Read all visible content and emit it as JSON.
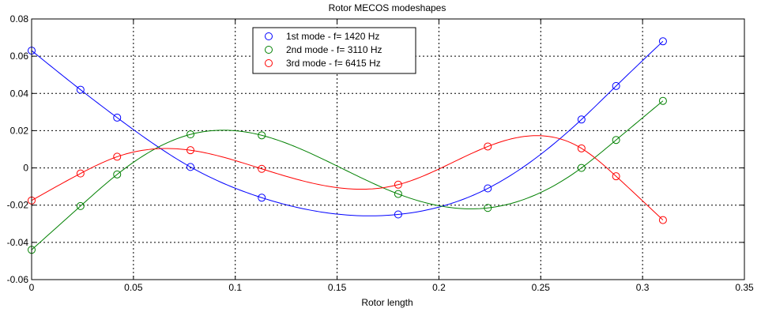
{
  "chart_data": {
    "type": "line",
    "title": "Rotor MECOS modeshapes",
    "xlabel": "Rotor length",
    "ylabel": "",
    "xlim": [
      0,
      0.35
    ],
    "ylim": [
      -0.06,
      0.08
    ],
    "xticks": [
      0,
      0.05,
      0.1,
      0.15,
      0.2,
      0.25,
      0.3,
      0.35
    ],
    "xtick_labels": [
      "0",
      "0.05",
      "0.1",
      "0.15",
      "0.2",
      "0.25",
      "0.3",
      "0.35"
    ],
    "yticks": [
      -0.06,
      -0.04,
      -0.02,
      0,
      0.02,
      0.04,
      0.06,
      0.08
    ],
    "ytick_labels": [
      "-0.06",
      "-0.04",
      "-0.02",
      "0",
      "0.02",
      "0.04",
      "0.06",
      "0.08"
    ],
    "grid": true,
    "legend_position": "top-center",
    "x": [
      0,
      0.024,
      0.042,
      0.078,
      0.113,
      0.18,
      0.224,
      0.27,
      0.287,
      0.31
    ],
    "series": [
      {
        "name": "1st mode - f= 1420 Hz",
        "color": "#0000ff",
        "values": [
          0.063,
          0.042,
          0.027,
          0.0005,
          -0.016,
          -0.025,
          -0.011,
          0.026,
          0.044,
          0.068
        ]
      },
      {
        "name": "2nd mode - f= 3110 Hz",
        "color": "#008000",
        "values": [
          -0.044,
          -0.0205,
          -0.0035,
          0.018,
          0.0175,
          -0.014,
          -0.0215,
          0.0,
          0.015,
          0.036
        ]
      },
      {
        "name": "3rd mode - f= 6415 Hz",
        "color": "#ff0000",
        "values": [
          -0.0175,
          -0.003,
          0.006,
          0.0095,
          -0.0005,
          -0.009,
          0.0115,
          0.0105,
          -0.0045,
          -0.028
        ]
      }
    ]
  }
}
